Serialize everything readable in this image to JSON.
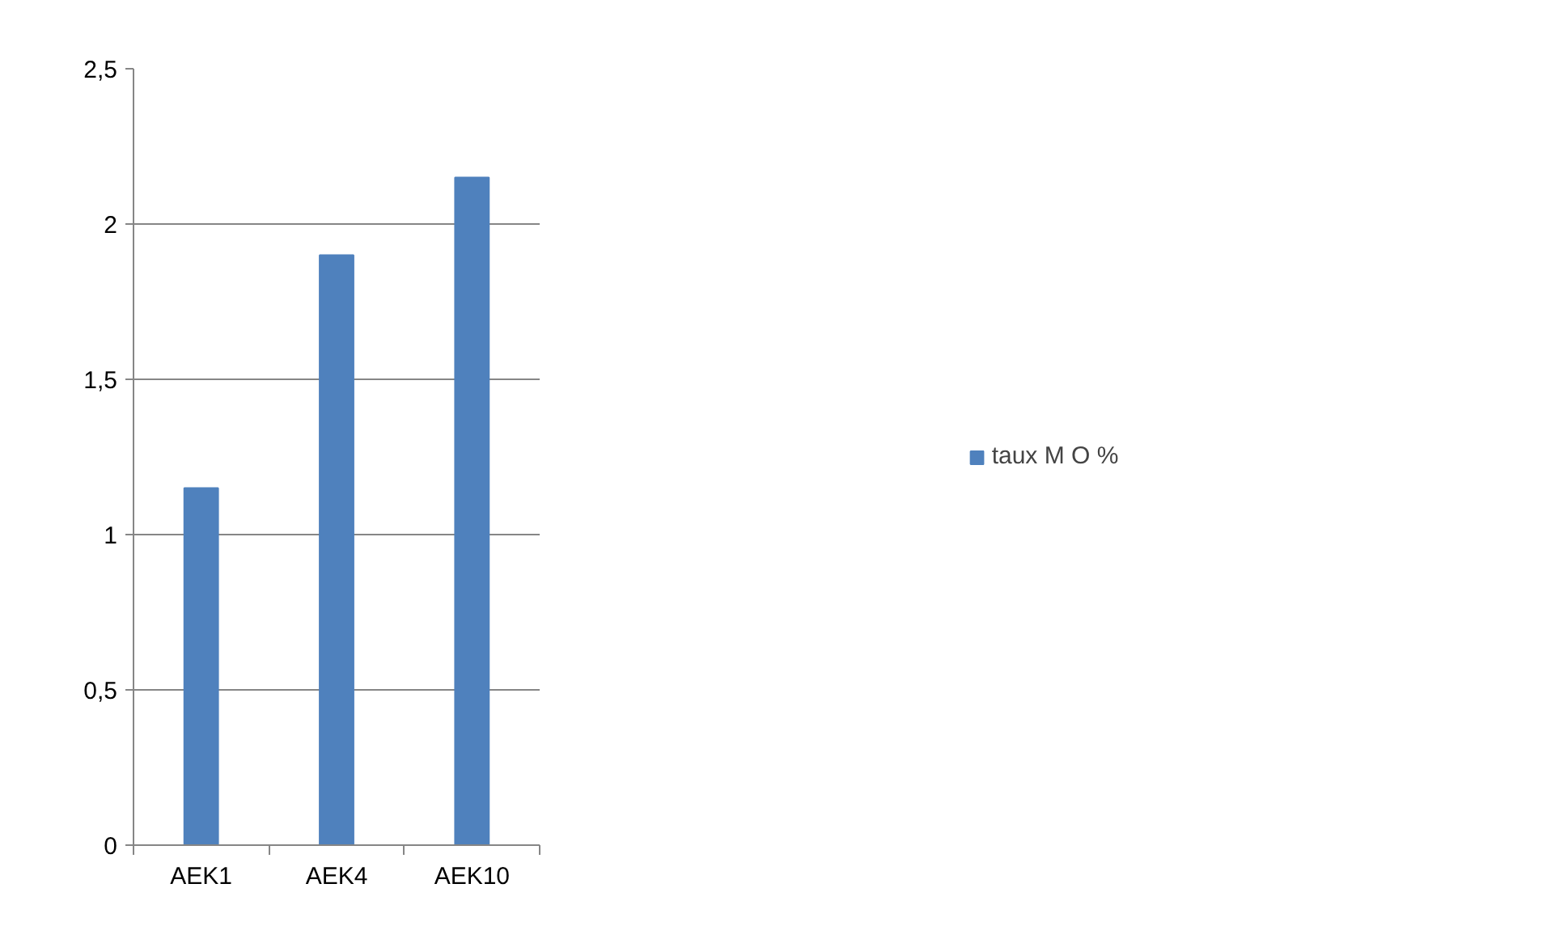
{
  "chart_data": {
    "type": "bar",
    "categories": [
      "AEK1",
      "AEK4",
      "AEK10"
    ],
    "series": [
      {
        "name": "taux M O %",
        "color": "#4f81bd",
        "values": [
          1.15,
          1.9,
          2.15
        ]
      }
    ],
    "ylim": [
      0,
      2.5
    ],
    "yticks": [
      {
        "value": 0,
        "label": "0"
      },
      {
        "value": 0.5,
        "label": "0,5"
      },
      {
        "value": 1,
        "label": "1"
      },
      {
        "value": 1.5,
        "label": "1,5"
      },
      {
        "value": 2,
        "label": "2"
      },
      {
        "value": 2.5,
        "label": "2,5"
      }
    ],
    "grid": "y",
    "legend": "right"
  }
}
